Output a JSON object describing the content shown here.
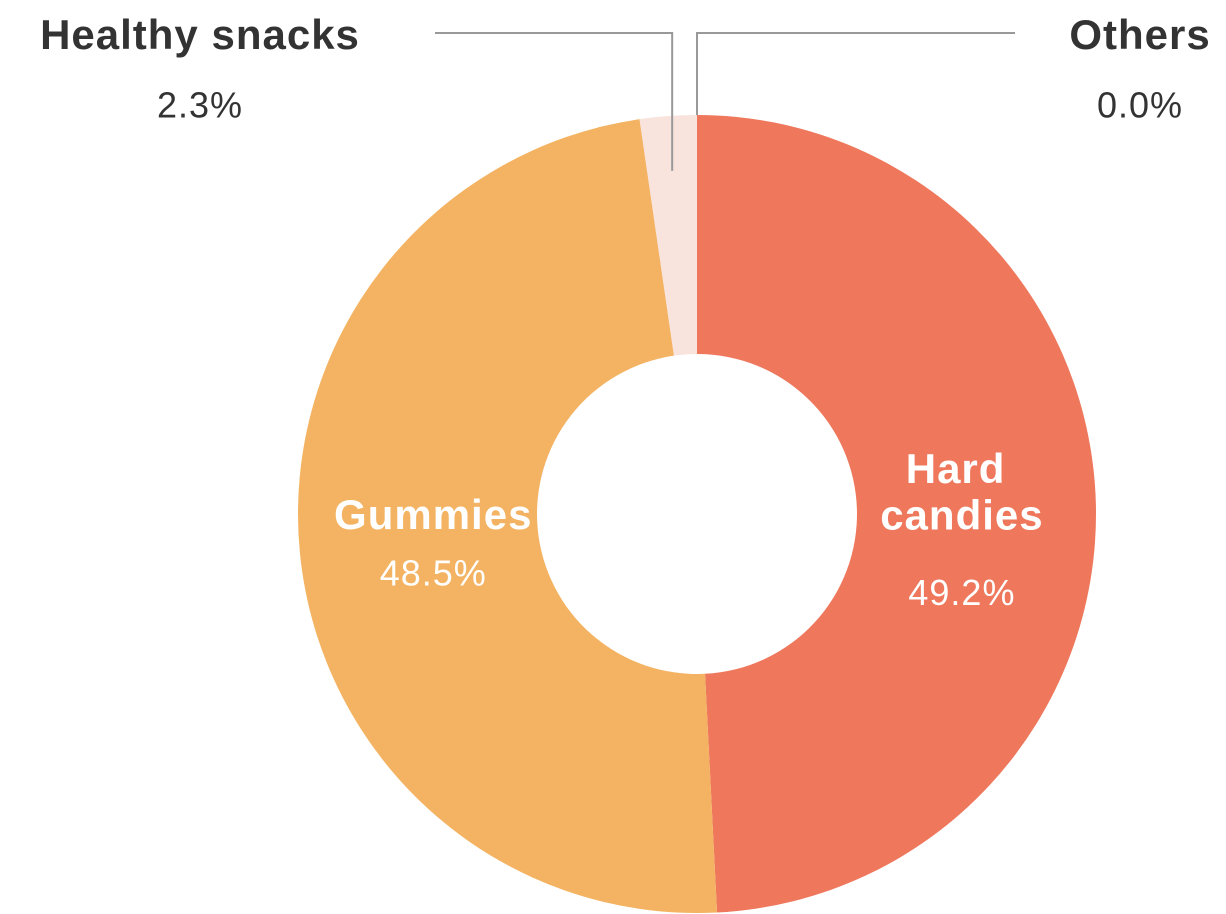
{
  "chart_data": {
    "type": "pie",
    "donut": true,
    "categories": [
      "Hard candies",
      "Gummies",
      "Healthy snacks",
      "Others"
    ],
    "values": [
      49.2,
      48.5,
      2.3,
      0.0
    ],
    "value_labels": [
      "49.2%",
      "48.5%",
      "2.3%",
      "0.0%"
    ],
    "colors": [
      "#ee775c",
      "#f3b362",
      "#f9e3dd",
      "#e9a0a0"
    ]
  }
}
